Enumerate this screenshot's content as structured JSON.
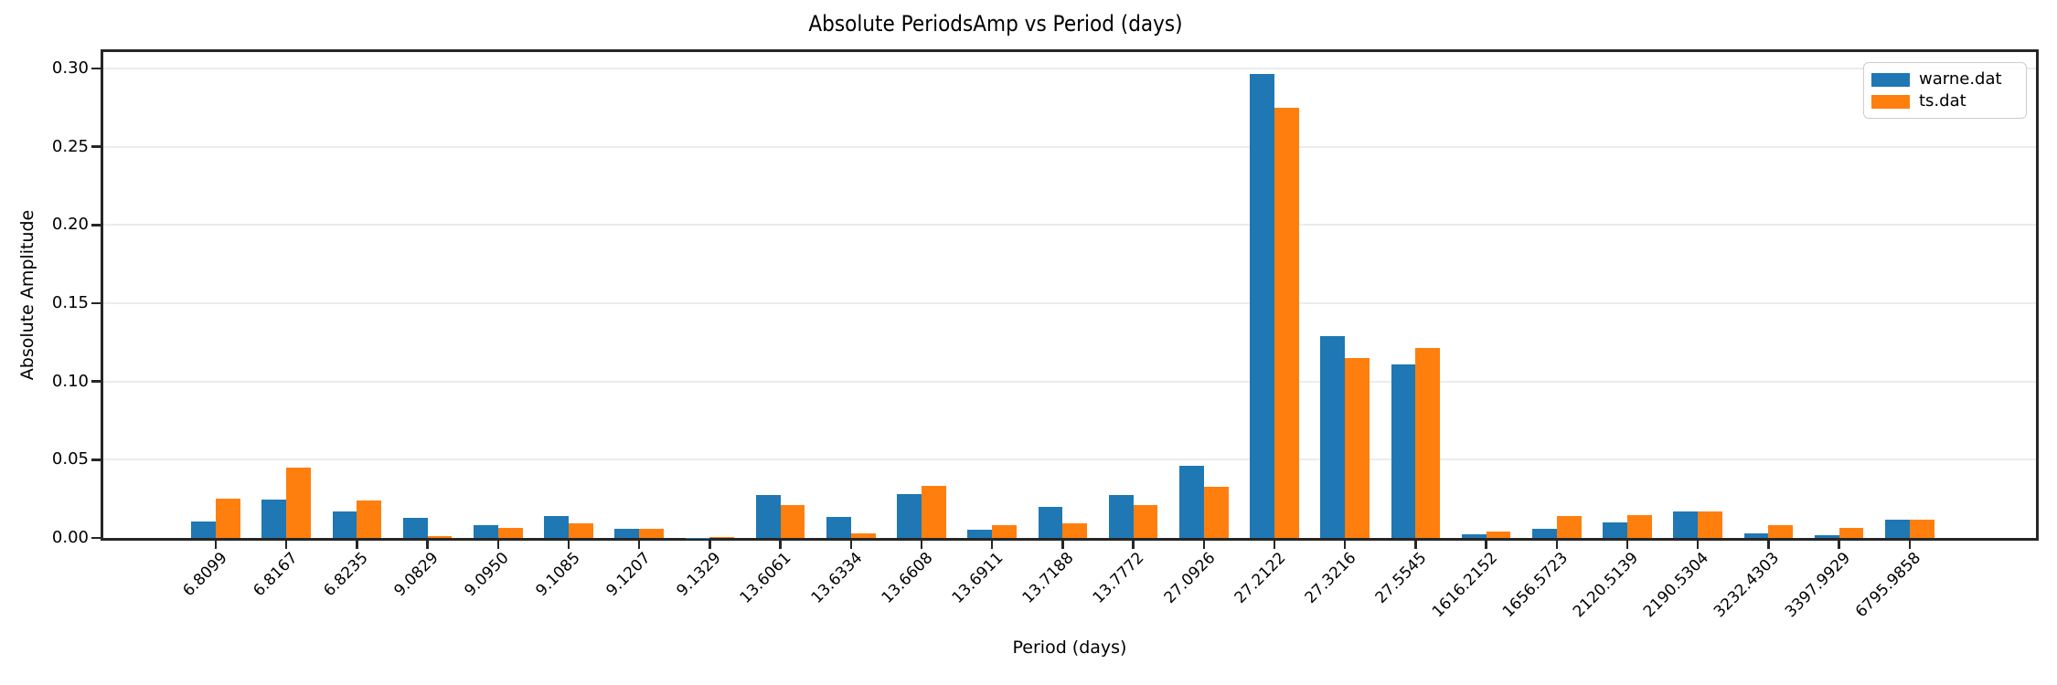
{
  "chart_data": {
    "type": "bar",
    "title": "Absolute PeriodsAmp vs Period (days)",
    "xlabel": "Period (days)",
    "ylabel": "Absolute Amplitude",
    "ylim": [
      0,
      0.3105
    ],
    "yticks": [
      0.0,
      0.05,
      0.1,
      0.15,
      0.2,
      0.25,
      0.3
    ],
    "ytick_labels": [
      "0.00",
      "0.05",
      "0.10",
      "0.15",
      "0.20",
      "0.25",
      "0.30"
    ],
    "grid": true,
    "legend_position": "upper right",
    "categories": [
      "6.8099",
      "6.8167",
      "6.8235",
      "9.0829",
      "9.0950",
      "9.1085",
      "9.1207",
      "9.1329",
      "13.6061",
      "13.6334",
      "13.6608",
      "13.6911",
      "13.7188",
      "13.7772",
      "27.0926",
      "27.2122",
      "27.3216",
      "27.5545",
      "1616.2152",
      "1656.5723",
      "2120.5139",
      "2190.5304",
      "3232.4303",
      "3397.9929",
      "6795.9858"
    ],
    "series": [
      {
        "name": "warne.dat",
        "color": "#1f77b4",
        "values": [
          0.0105,
          0.0246,
          0.0171,
          0.0131,
          0.0082,
          0.014,
          0.006,
          0.0002,
          0.0272,
          0.0134,
          0.0282,
          0.0055,
          0.0201,
          0.0273,
          0.046,
          0.2967,
          0.129,
          0.111,
          0.0023,
          0.0058,
          0.0098,
          0.0168,
          0.0027,
          0.0019,
          0.0115
        ]
      },
      {
        "name": "ts.dat",
        "color": "#ff7f0e",
        "values": [
          0.0253,
          0.0452,
          0.0242,
          0.0009,
          0.0066,
          0.0094,
          0.0059,
          0.0008,
          0.0208,
          0.0029,
          0.0335,
          0.0082,
          0.0094,
          0.0209,
          0.0326,
          0.2747,
          0.115,
          0.1216,
          0.0043,
          0.0142,
          0.0148,
          0.017,
          0.008,
          0.0062,
          0.0115
        ]
      }
    ]
  }
}
